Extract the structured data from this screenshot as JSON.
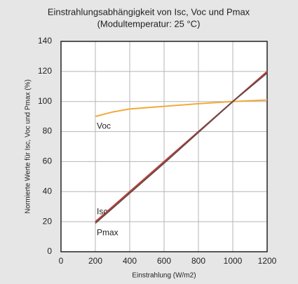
{
  "chart_data": {
    "type": "line",
    "title": "Einstrahlungsabhängigkeit von Isc, Voc und Pmax",
    "subtitle": "(Modultemperatur: 25 °C)",
    "x_label": "Einstrahlung (W/m2)",
    "y_label": "Normierte Werte für Isc, Voc und Pmax (%)",
    "x": [
      200,
      300,
      400,
      600,
      800,
      1000,
      1200
    ],
    "series": [
      {
        "name": "Voc",
        "color": "#f2a93b",
        "values": [
          90,
          93,
          95,
          96.8,
          98.5,
          100,
          101
        ]
      },
      {
        "name": "Isc",
        "color": "#c8403a",
        "values": [
          20,
          30,
          40,
          60,
          80,
          100,
          120
        ]
      },
      {
        "name": "Pmax",
        "color": "#6b4a4a",
        "values": [
          19,
          29,
          39,
          59,
          79.5,
          100,
          119
        ]
      }
    ],
    "xlim": [
      0,
      1200
    ],
    "xticks": [
      0,
      200,
      400,
      600,
      800,
      1000,
      1200
    ],
    "ylim": [
      0,
      140
    ],
    "yticks": [
      0,
      20,
      40,
      60,
      80,
      100,
      120,
      140
    ],
    "grid": true
  }
}
